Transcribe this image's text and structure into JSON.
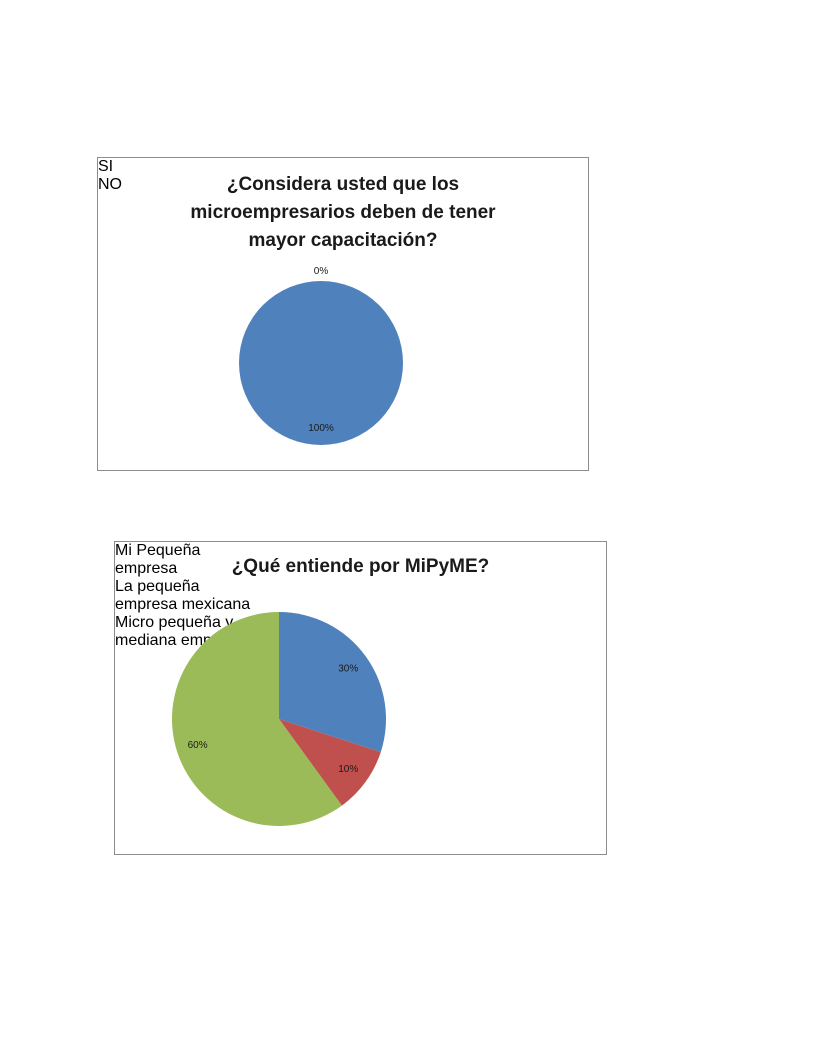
{
  "chart_data": [
    {
      "type": "pie",
      "title": "¿Considera usted que los microempresarios deben de tener mayor capacitación?",
      "categories": [
        "SI",
        "NO"
      ],
      "values": [
        100,
        0
      ],
      "value_labels": [
        "100%",
        "0%"
      ],
      "colors": [
        "#4f81bd",
        "#c0504d"
      ],
      "legend": "right"
    },
    {
      "type": "pie",
      "title": "¿Qué entiende por MiPyME?",
      "categories": [
        "Mi Pequeña empresa",
        "La pequeña empresa mexicana",
        "Micro pequeña y mediana empresa"
      ],
      "values": [
        30,
        10,
        60
      ],
      "value_labels": [
        "30%",
        "10%",
        "60%"
      ],
      "colors": [
        "#4f81bd",
        "#c0504d",
        "#9bbb59"
      ],
      "legend": "right"
    }
  ]
}
